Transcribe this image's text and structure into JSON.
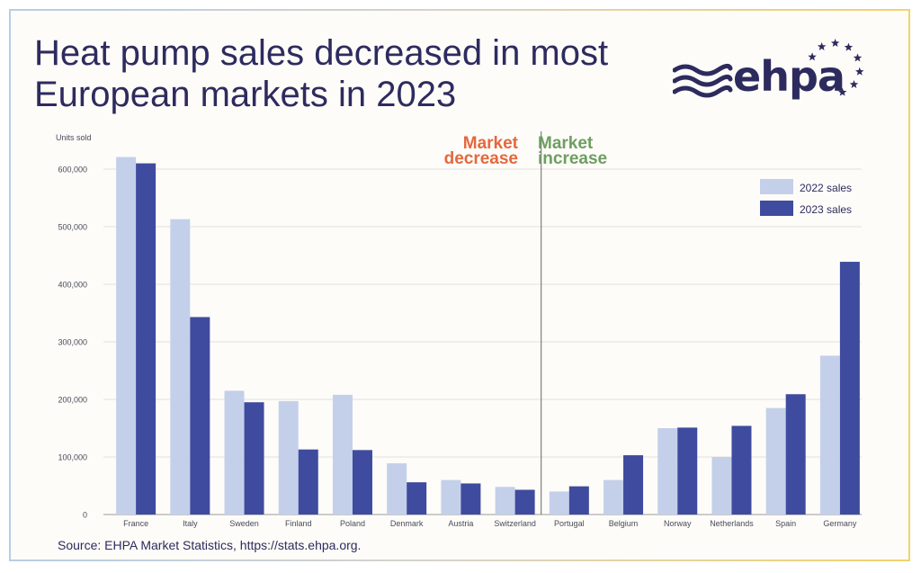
{
  "title": "Heat pump sales decreased in most European markets in 2023",
  "logo": {
    "text": "ehpa",
    "icon": "ehpa-waves-and-stars-logo"
  },
  "source": "Source: EHPA Market Statistics, https://stats.ehpa.org.",
  "annotations": {
    "decrease": [
      "Market",
      "decrease"
    ],
    "increase": [
      "Market",
      "increase"
    ]
  },
  "colors": {
    "s2022": "#c4d0ea",
    "s2023": "#3f4b9e",
    "title": "#2d2b5e",
    "decrease": "#e4683e",
    "increase": "#6e9e62"
  },
  "chart_data": {
    "type": "bar",
    "ylabel": "Units sold",
    "ylim": [
      0,
      600000
    ],
    "yticks": [
      0,
      100000,
      200000,
      300000,
      400000,
      500000,
      600000
    ],
    "ytick_labels": [
      "0",
      "100,000",
      "200,000",
      "300,000",
      "400,000",
      "500,000",
      "600,000"
    ],
    "categories": [
      "France",
      "Italy",
      "Sweden",
      "Finland",
      "Poland",
      "Denmark",
      "Austria",
      "Switzerland",
      "Portugal",
      "Belgium",
      "Norway",
      "Netherlands",
      "Spain",
      "Germany"
    ],
    "series": [
      {
        "name": "2022 sales",
        "values": [
          621000,
          513000,
          215000,
          197000,
          208000,
          89000,
          60000,
          48000,
          40000,
          60000,
          150000,
          100000,
          185000,
          276000
        ]
      },
      {
        "name": "2023 sales",
        "values": [
          610000,
          343000,
          195000,
          113000,
          112000,
          56000,
          54000,
          43000,
          49000,
          103000,
          151000,
          154000,
          209000,
          439000
        ]
      }
    ],
    "divider_after_index": 7,
    "legend_position": "top-right",
    "grid": true
  }
}
